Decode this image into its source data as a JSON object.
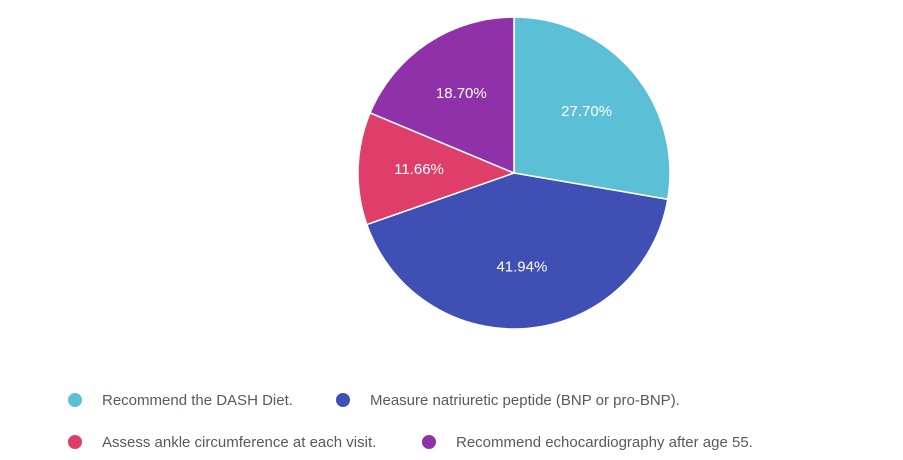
{
  "chart_data": {
    "type": "pie",
    "title": "",
    "slices": [
      {
        "label": "Recommend the DASH Diet.",
        "value": 27.7,
        "display": "27.70%",
        "color": "#5bbfd6"
      },
      {
        "label": "Measure natriuretic peptide (BNP or pro-BNP).",
        "value": 41.94,
        "display": "41.94%",
        "color": "#3f4fb4"
      },
      {
        "label": "Assess ankle circumference at each visit.",
        "value": 11.66,
        "display": "11.66%",
        "color": "#df3d6a"
      },
      {
        "label": "Recommend echocardiography after age 55.",
        "value": 18.7,
        "display": "18.70%",
        "color": "#8f32aa"
      }
    ],
    "start_angle": "12 o'clock",
    "direction": "clockwise",
    "legend_position": "bottom"
  },
  "legend": {
    "items": [
      {
        "label": "Recommend the DASH Diet.",
        "color": "#5bbfd6"
      },
      {
        "label": "Measure natriuretic peptide (BNP or pro-BNP).",
        "color": "#3f4fb4"
      },
      {
        "label": "Assess ankle circumference at each visit.",
        "color": "#df3d6a"
      },
      {
        "label": "Recommend echocardiography after age 55.",
        "color": "#8f32aa"
      }
    ]
  }
}
